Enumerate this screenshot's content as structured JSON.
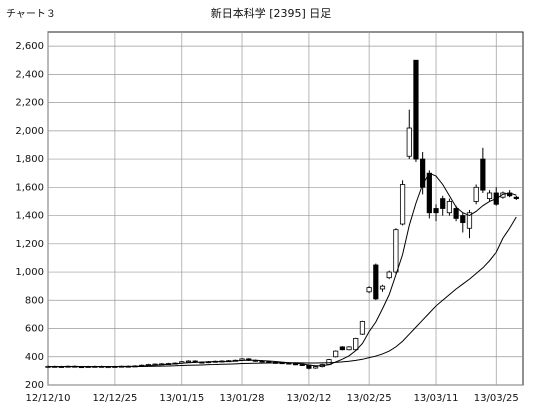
{
  "chart_data": {
    "type": "candlestick",
    "title": "新日本科学 [2395] 日足",
    "chart_label": "チャート３",
    "categories": [
      "12/12/10",
      null,
      null,
      null,
      null,
      null,
      null,
      null,
      null,
      null,
      "12/12/25",
      null,
      null,
      null,
      null,
      null,
      null,
      null,
      null,
      null,
      "13/01/15",
      null,
      null,
      null,
      null,
      null,
      null,
      null,
      null,
      "13/01/28",
      null,
      null,
      null,
      null,
      null,
      null,
      null,
      null,
      null,
      "13/02/12",
      null,
      null,
      null,
      null,
      null,
      null,
      null,
      null,
      "13/02/25",
      null,
      null,
      null,
      null,
      null,
      null,
      null,
      null,
      null,
      "13/03/11",
      null,
      null,
      null,
      null,
      null,
      null,
      null,
      null,
      "13/03/25",
      null,
      null,
      null
    ],
    "open": [
      330,
      332,
      331,
      330,
      333,
      330,
      329,
      331,
      332,
      330,
      330,
      331,
      333,
      332,
      335,
      340,
      345,
      348,
      350,
      352,
      355,
      365,
      370,
      362,
      360,
      365,
      368,
      370,
      372,
      375,
      385,
      375,
      370,
      365,
      360,
      358,
      355,
      350,
      345,
      340,
      320,
      330,
      345,
      400,
      470,
      450,
      450,
      560,
      860,
      1050,
      880,
      960,
      1000,
      1340,
      1820,
      2500,
      1800,
      1700,
      1450,
      1520,
      1420,
      1450,
      1400,
      1310,
      1500,
      1800,
      1520,
      1560,
      1530,
      1560,
      1530
    ],
    "high": [
      337,
      337,
      336,
      338,
      338,
      335,
      336,
      337,
      337,
      335,
      336,
      338,
      338,
      340,
      345,
      350,
      353,
      355,
      357,
      360,
      370,
      375,
      375,
      367,
      370,
      373,
      375,
      377,
      380,
      390,
      390,
      380,
      375,
      370,
      365,
      363,
      360,
      355,
      350,
      345,
      335,
      350,
      385,
      445,
      475,
      475,
      535,
      655,
      900,
      1060,
      910,
      1010,
      1310,
      1650,
      2150,
      2500,
      1850,
      1720,
      1480,
      1540,
      1520,
      1470,
      1420,
      1440,
      1620,
      1880,
      1580,
      1600,
      1570,
      1580,
      1540
    ],
    "low": [
      325,
      326,
      325,
      325,
      325,
      324,
      324,
      326,
      325,
      325,
      325,
      326,
      327,
      327,
      330,
      335,
      340,
      343,
      345,
      347,
      350,
      360,
      357,
      355,
      355,
      360,
      363,
      365,
      367,
      370,
      370,
      365,
      360,
      355,
      353,
      350,
      345,
      340,
      335,
      310,
      315,
      325,
      340,
      395,
      445,
      445,
      445,
      555,
      850,
      800,
      860,
      950,
      990,
      1330,
      1800,
      1780,
      1550,
      1380,
      1360,
      1400,
      1400,
      1360,
      1280,
      1240,
      1480,
      1560,
      1500,
      1470,
      1520,
      1530,
      1510
    ],
    "close": [
      332,
      331,
      330,
      333,
      330,
      329,
      331,
      332,
      330,
      330,
      331,
      333,
      332,
      335,
      340,
      345,
      348,
      350,
      352,
      355,
      365,
      370,
      362,
      360,
      365,
      368,
      370,
      372,
      375,
      385,
      375,
      370,
      365,
      360,
      358,
      355,
      350,
      345,
      340,
      318,
      330,
      345,
      380,
      440,
      450,
      470,
      530,
      650,
      890,
      810,
      900,
      1000,
      1300,
      1620,
      2020,
      1800,
      1600,
      1420,
      1420,
      1450,
      1500,
      1380,
      1350,
      1420,
      1600,
      1580,
      1560,
      1480,
      1560,
      1540,
      1520
    ],
    "series": [
      {
        "color": "#000000",
        "values": [
          330,
          330,
          331,
          331,
          331,
          331,
          330,
          330,
          331,
          331,
          331,
          331,
          332,
          332,
          334,
          337,
          340,
          344,
          347,
          350,
          354,
          358,
          360,
          362,
          364,
          366,
          365,
          367,
          370,
          374,
          376,
          375,
          373,
          370,
          366,
          362,
          358,
          354,
          350,
          342,
          336,
          336,
          344,
          363,
          383,
          407,
          443,
          494,
          578,
          646,
          740,
          840,
          980,
          1124,
          1330,
          1488,
          1620,
          1700,
          1680,
          1620,
          1540,
          1460,
          1420,
          1400,
          1430,
          1470,
          1500,
          1520,
          1550,
          1560,
          1545
        ]
      },
      {
        "color": "#000000",
        "values": [
          330,
          330,
          330,
          330,
          330,
          330,
          330,
          330,
          330,
          330,
          330,
          330,
          330,
          331,
          331,
          332,
          333,
          334,
          335,
          336,
          338,
          340,
          341,
          342,
          344,
          345,
          347,
          348,
          350,
          352,
          353,
          354,
          355,
          356,
          357,
          357,
          358,
          358,
          357,
          356,
          356,
          357,
          358,
          360,
          364,
          368,
          374,
          382,
          394,
          405,
          420,
          440,
          470,
          510,
          560,
          610,
          660,
          710,
          760,
          800,
          840,
          880,
          915,
          950,
          990,
          1030,
          1080,
          1140,
          1240,
          1310,
          1390
        ]
      }
    ],
    "up_color": "#ffffff",
    "down_color": "#000000",
    "ylim": [
      200,
      2700
    ],
    "yticks": [
      200,
      400,
      600,
      800,
      {
        "value": 1000,
        "label": "1,000"
      },
      {
        "value": 1200,
        "label": "1,200"
      },
      {
        "value": 1400,
        "label": "1,400"
      },
      {
        "value": 1600,
        "label": "1,600"
      },
      {
        "value": 1800,
        "label": "1,800"
      },
      {
        "value": 2000,
        "label": "2,000"
      },
      {
        "value": 2200,
        "label": "2,200"
      },
      {
        "value": 2400,
        "label": "2,400"
      },
      {
        "value": 2600,
        "label": "2,600"
      }
    ],
    "grid": true
  }
}
